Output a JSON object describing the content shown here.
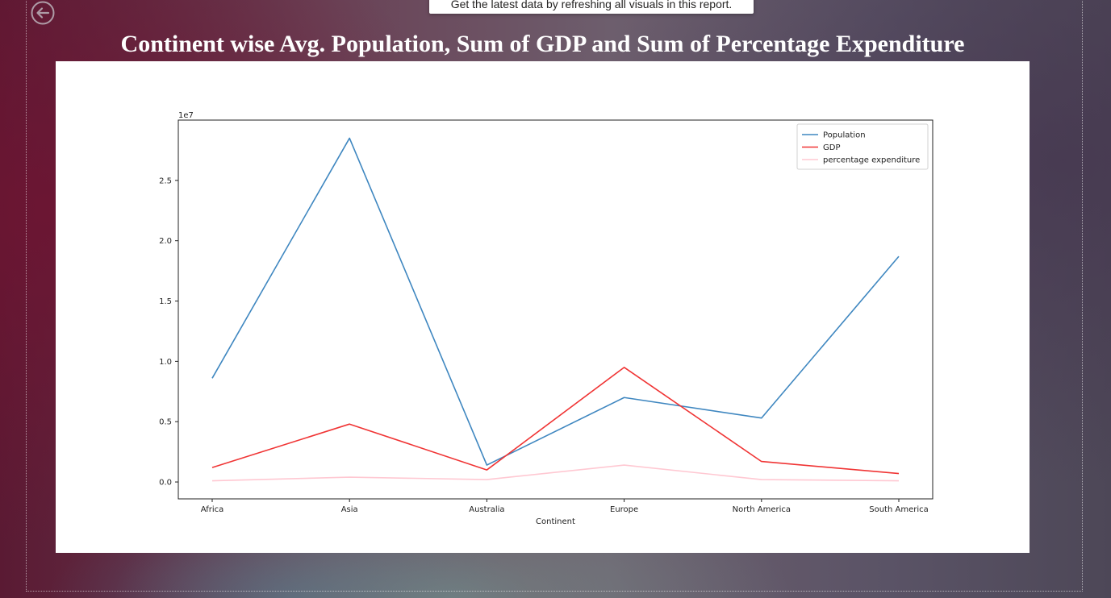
{
  "toast": {
    "text": "Get the latest data by refreshing all visuals in this report."
  },
  "back_icon": "arrow-left-circle-icon",
  "colors": {
    "population": "#3f87c0",
    "gdp": "#f03434",
    "percentage_expenditure": "#ffc8d2"
  },
  "chart_data": {
    "type": "line",
    "title": "Continent wise Avg. Population, Sum of GDP and Sum of Percentage Expenditure",
    "xlabel": "Continent",
    "ylabel": "",
    "scale_label": "1e7",
    "categories": [
      "Africa",
      "Asia",
      "Australia",
      "Europe",
      "North America",
      "South America"
    ],
    "ylim": [
      -0.14,
      3.0
    ],
    "yticks": [
      0.0,
      0.5,
      1.0,
      1.5,
      2.0,
      2.5
    ],
    "ytick_labels": [
      "0.0",
      "0.5",
      "1.0",
      "1.5",
      "2.0",
      "2.5"
    ],
    "grid": false,
    "legend": "top-right",
    "series": [
      {
        "name": "Population",
        "values": [
          0.86,
          2.85,
          0.14,
          0.7,
          0.53,
          1.87
        ]
      },
      {
        "name": "GDP",
        "values": [
          0.12,
          0.48,
          0.1,
          0.95,
          0.17,
          0.07
        ]
      },
      {
        "name": "percentage expenditure",
        "values": [
          0.01,
          0.04,
          0.02,
          0.14,
          0.02,
          0.01
        ]
      }
    ]
  }
}
